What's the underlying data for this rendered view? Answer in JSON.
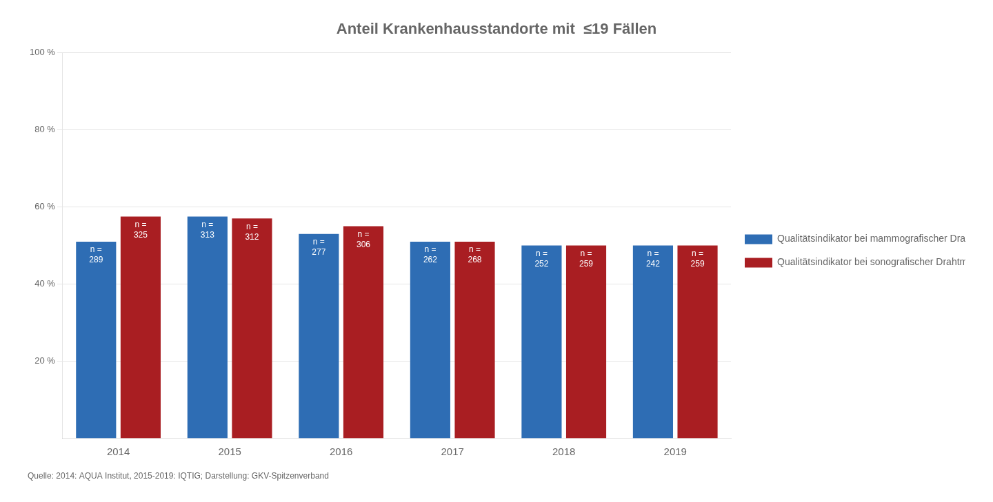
{
  "chart_data": {
    "type": "bar",
    "title": "Anteil Krankenhausstandorte mit  ≤19 Fällen",
    "footnote": "Quelle: 2014: AQUA Institut, 2015-2019: IQTIG; Darstellung: GKV-Spitzenverband",
    "categories": [
      "2014",
      "2015",
      "2016",
      "2017",
      "2018",
      "2019"
    ],
    "series": [
      {
        "name": "Qualitätsindikator bei mammografischer Drahtmarkierung",
        "color": "#2E6DB4",
        "values": [
          51.0,
          57.5,
          53.0,
          51.0,
          50.0,
          50.0
        ],
        "annotations": [
          "n =\n289",
          "n =\n313",
          "n =\n277",
          "n =\n262",
          "n =\n252",
          "n =\n242"
        ]
      },
      {
        "name": "Qualitätsindikator bei sonografischer Drahtmarkierung",
        "color": "#A91E22",
        "values": [
          57.5,
          57.0,
          55.0,
          51.0,
          50.0,
          50.0
        ],
        "annotations": [
          "n =\n325",
          "n =\n312",
          "n =\n306",
          "n =\n268",
          "n =\n259",
          "n =\n259"
        ]
      }
    ],
    "ylim": [
      0,
      100
    ],
    "yticks": [
      {
        "value": 20,
        "label": "20 %"
      },
      {
        "value": 40,
        "label": "40 %"
      },
      {
        "value": 60,
        "label": "60 %"
      },
      {
        "value": 80,
        "label": "80 %"
      },
      {
        "value": 100,
        "label": "100 %"
      }
    ],
    "grid": true,
    "legend": "right"
  }
}
